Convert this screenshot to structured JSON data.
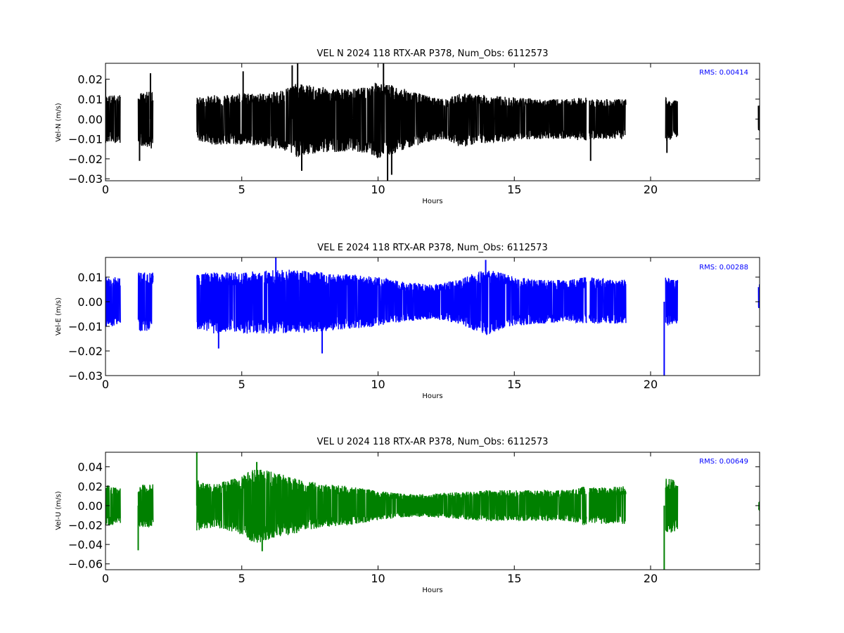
{
  "chart_data": [
    {
      "type": "line",
      "title": "VEL N 2024 118 RTX-AR  P378, Num_Obs: 6112573",
      "xlabel": "Hours",
      "ylabel": "Vel-N (m/s)",
      "xlim": [
        0,
        24
      ],
      "ylim": [
        -0.031,
        0.028
      ],
      "xticks": [
        0,
        5,
        10,
        15,
        20
      ],
      "xtick_labels": [
        "0",
        "5",
        "10",
        "15",
        "20"
      ],
      "yticks": [
        -0.03,
        -0.02,
        -0.01,
        0.0,
        0.01,
        0.02
      ],
      "ytick_labels": [
        "−0.03",
        "−0.02",
        "−0.01",
        "0.00",
        "0.01",
        "0.02"
      ],
      "annotation": "RMS:  0.00414",
      "color": "#000000",
      "annotation_color": "#0000ff",
      "data_segments": [
        [
          0.0,
          0.55
        ],
        [
          1.2,
          1.75
        ],
        [
          3.35,
          17.65
        ],
        [
          17.75,
          19.1
        ],
        [
          20.55,
          21.0
        ],
        [
          23.95,
          24.0
        ]
      ],
      "envelope": {
        "x": [
          0,
          0.5,
          1.2,
          1.7,
          3.4,
          4,
          5,
          6,
          6.5,
          7,
          7.5,
          8,
          9,
          9.5,
          10,
          10.5,
          11,
          11.5,
          12,
          12.5,
          13,
          14,
          15,
          16,
          17,
          17.6,
          17.8,
          19,
          20.6,
          21,
          24
        ],
        "upper": [
          0.012,
          0.012,
          0.013,
          0.014,
          0.011,
          0.012,
          0.013,
          0.013,
          0.015,
          0.018,
          0.017,
          0.016,
          0.015,
          0.016,
          0.019,
          0.017,
          0.015,
          0.013,
          0.011,
          0.01,
          0.013,
          0.012,
          0.011,
          0.01,
          0.01,
          0.011,
          0.01,
          0.01,
          0.011,
          0.009,
          0.007
        ],
        "lower": [
          -0.012,
          -0.012,
          -0.013,
          -0.015,
          -0.011,
          -0.013,
          -0.013,
          -0.014,
          -0.016,
          -0.019,
          -0.018,
          -0.017,
          -0.016,
          -0.017,
          -0.02,
          -0.018,
          -0.015,
          -0.013,
          -0.011,
          -0.01,
          -0.014,
          -0.012,
          -0.011,
          -0.01,
          -0.01,
          -0.011,
          -0.01,
          -0.01,
          -0.011,
          -0.009,
          -0.006
        ]
      },
      "spikes": [
        [
          0.0,
          0.02
        ],
        [
          1.65,
          0.023
        ],
        [
          1.25,
          -0.021
        ],
        [
          5.05,
          0.024
        ],
        [
          7.05,
          0.028
        ],
        [
          6.85,
          0.027
        ],
        [
          7.2,
          -0.026
        ],
        [
          10.2,
          0.028
        ],
        [
          10.35,
          -0.031
        ],
        [
          10.5,
          -0.028
        ],
        [
          17.8,
          -0.021
        ],
        [
          20.6,
          -0.017
        ]
      ]
    },
    {
      "type": "line",
      "title": "VEL E 2024 118 RTX-AR  P378, Num_Obs: 6112573",
      "xlabel": "Hours",
      "ylabel": "Vel-E (m/s)",
      "xlim": [
        0,
        24
      ],
      "ylim": [
        -0.03,
        0.018
      ],
      "xticks": [
        0,
        5,
        10,
        15,
        20
      ],
      "xtick_labels": [
        "0",
        "5",
        "10",
        "15",
        "20"
      ],
      "yticks": [
        -0.03,
        -0.02,
        -0.01,
        0.0,
        0.01
      ],
      "ytick_labels": [
        "−0.03",
        "−0.02",
        "−0.01",
        "0.00",
        "0.01"
      ],
      "annotation": "RMS:  0.00288",
      "color": "#0000ff",
      "annotation_color": "#0000ff",
      "data_segments": [
        [
          0.0,
          0.55
        ],
        [
          1.2,
          1.75
        ],
        [
          3.35,
          17.65
        ],
        [
          17.75,
          19.1
        ],
        [
          20.55,
          21.0
        ],
        [
          23.95,
          24.0
        ]
      ],
      "envelope": {
        "x": [
          0,
          0.5,
          1.2,
          1.7,
          3.4,
          4,
          5,
          6,
          7,
          8,
          9,
          10,
          11,
          12,
          13,
          13.5,
          14,
          14.5,
          15,
          16,
          17,
          17.6,
          17.8,
          19,
          20.6,
          21,
          24
        ],
        "upper": [
          0.01,
          0.01,
          0.012,
          0.012,
          0.011,
          0.012,
          0.012,
          0.013,
          0.013,
          0.012,
          0.011,
          0.01,
          0.008,
          0.007,
          0.009,
          0.012,
          0.013,
          0.012,
          0.01,
          0.009,
          0.009,
          0.01,
          0.01,
          0.009,
          0.01,
          0.009,
          0.008
        ],
        "lower": [
          -0.01,
          -0.01,
          -0.012,
          -0.012,
          -0.011,
          -0.013,
          -0.013,
          -0.013,
          -0.013,
          -0.012,
          -0.011,
          -0.01,
          -0.008,
          -0.007,
          -0.009,
          -0.012,
          -0.014,
          -0.012,
          -0.01,
          -0.009,
          -0.008,
          -0.009,
          -0.009,
          -0.009,
          -0.01,
          -0.009,
          -0.003
        ]
      },
      "spikes": [
        [
          6.25,
          0.018
        ],
        [
          4.15,
          -0.019
        ],
        [
          7.95,
          -0.021
        ],
        [
          13.95,
          0.017
        ],
        [
          20.5,
          -0.03
        ]
      ]
    },
    {
      "type": "line",
      "title": "VEL U 2024 118 RTX-AR  P378, Num_Obs: 6112573",
      "xlabel": "Hours",
      "ylabel": "Vel-U (m/s)",
      "xlim": [
        0,
        24
      ],
      "ylim": [
        -0.066,
        0.055
      ],
      "xticks": [
        0,
        5,
        10,
        15,
        20
      ],
      "xtick_labels": [
        "0",
        "5",
        "10",
        "15",
        "20"
      ],
      "yticks": [
        -0.06,
        -0.04,
        -0.02,
        0.0,
        0.02,
        0.04
      ],
      "ytick_labels": [
        "−0.06",
        "−0.04",
        "−0.02",
        "0.00",
        "0.02",
        "0.04"
      ],
      "annotation": "RMS:  0.00649",
      "color": "#008000",
      "annotation_color": "#0000ff",
      "data_segments": [
        [
          0.0,
          0.55
        ],
        [
          1.2,
          1.75
        ],
        [
          3.35,
          17.65
        ],
        [
          17.75,
          19.1
        ],
        [
          20.55,
          21.0
        ],
        [
          23.95,
          24.0
        ]
      ],
      "envelope": {
        "x": [
          0,
          0.5,
          1.2,
          1.7,
          3.4,
          4,
          5,
          5.5,
          6,
          7,
          8,
          9,
          10,
          11,
          12,
          13,
          14,
          15,
          16,
          17,
          17.6,
          17.8,
          19,
          20.6,
          21,
          24
        ],
        "upper": [
          0.022,
          0.018,
          0.022,
          0.022,
          0.026,
          0.022,
          0.03,
          0.04,
          0.036,
          0.028,
          0.022,
          0.02,
          0.015,
          0.012,
          0.012,
          0.014,
          0.016,
          0.016,
          0.016,
          0.016,
          0.02,
          0.018,
          0.02,
          0.03,
          0.025,
          0.005
        ],
        "lower": [
          -0.022,
          -0.018,
          -0.022,
          -0.022,
          -0.026,
          -0.022,
          -0.03,
          -0.04,
          -0.036,
          -0.028,
          -0.022,
          -0.02,
          -0.015,
          -0.012,
          -0.012,
          -0.014,
          -0.016,
          -0.016,
          -0.016,
          -0.016,
          -0.02,
          -0.018,
          -0.02,
          -0.03,
          -0.025,
          -0.005
        ]
      },
      "spikes": [
        [
          3.35,
          0.055
        ],
        [
          1.2,
          -0.046
        ],
        [
          5.75,
          -0.047
        ],
        [
          5.55,
          0.045
        ],
        [
          20.5,
          -0.066
        ]
      ]
    }
  ]
}
